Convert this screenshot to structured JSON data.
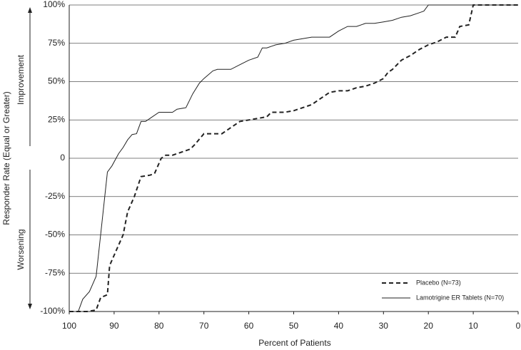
{
  "chart_data": {
    "type": "line",
    "x_label": "Percent of Patients",
    "y_label": "Responder Rate (Equal or Greater)",
    "annotations": [
      "Improvement",
      "Worsening"
    ],
    "xlim": [
      100,
      0
    ],
    "xticks": [
      100,
      90,
      80,
      70,
      60,
      50,
      40,
      30,
      20,
      10,
      0
    ],
    "ylim": [
      -100,
      100
    ],
    "yticks": [
      {
        "value": -100,
        "label": "-100%"
      },
      {
        "value": -75,
        "label": "-75%"
      },
      {
        "value": -50,
        "label": "-50%"
      },
      {
        "value": -25,
        "label": "-25%"
      },
      0,
      {
        "value": 25,
        "label": "25%"
      },
      {
        "value": 50,
        "label": "50%"
      },
      {
        "value": 75,
        "label": "75%"
      },
      {
        "value": 100,
        "label": "100%"
      }
    ],
    "grid": true,
    "legend": "lower right",
    "series": [
      {
        "name": "Placebo (N=73)",
        "color": "#222222",
        "line_style": "dashed",
        "x": [
          100,
          96,
          94,
          93,
          91.5,
          91,
          89.5,
          88,
          87,
          85.5,
          84,
          82,
          81,
          79.5,
          78.5,
          77,
          75,
          73,
          72,
          70,
          68,
          66,
          64,
          62,
          60,
          58,
          56,
          55,
          52,
          50,
          48,
          46,
          44,
          42,
          40,
          38,
          36,
          34,
          32,
          30,
          29,
          28,
          26,
          24,
          22,
          20,
          18,
          16,
          14,
          13,
          11,
          10,
          0
        ],
        "values": [
          -100,
          -100,
          -99,
          -91,
          -89,
          -70,
          -60,
          -50,
          -35,
          -25,
          -12,
          -11,
          -10,
          0,
          2,
          2,
          4,
          6,
          9,
          16,
          16,
          16,
          20,
          24,
          25,
          26,
          27,
          30,
          30,
          31,
          33,
          35,
          39,
          43,
          44,
          44,
          46,
          47,
          49,
          52,
          56,
          58,
          64,
          67,
          71,
          74,
          76,
          79,
          79,
          86,
          87,
          100,
          100
        ]
      },
      {
        "name": "Lamotrigine ER Tablets (N=70)",
        "color": "#222222",
        "line_style": "solid",
        "x": [
          100,
          98,
          97,
          95.5,
          94,
          93,
          91.5,
          90.5,
          89,
          88,
          87,
          86,
          85,
          84,
          83,
          82,
          80,
          78,
          77,
          76,
          74,
          72.5,
          71,
          70,
          68,
          67,
          64,
          62,
          60,
          58,
          57,
          56,
          54,
          52,
          50,
          48,
          46,
          42,
          40,
          38,
          36,
          34,
          32,
          30,
          28,
          26,
          24,
          22,
          21,
          20,
          0
        ],
        "values": [
          -100,
          -100,
          -92,
          -87,
          -77,
          -50,
          -9,
          -5,
          3,
          7,
          12,
          15.5,
          16,
          24,
          24,
          26,
          30,
          30,
          30,
          32,
          33,
          42,
          49,
          52,
          57,
          58,
          58,
          61,
          64,
          66,
          72,
          72,
          74,
          75,
          77,
          78,
          79,
          79,
          83,
          86,
          86,
          88,
          88,
          89,
          90,
          92,
          93,
          95,
          96,
          100,
          100
        ]
      }
    ]
  }
}
